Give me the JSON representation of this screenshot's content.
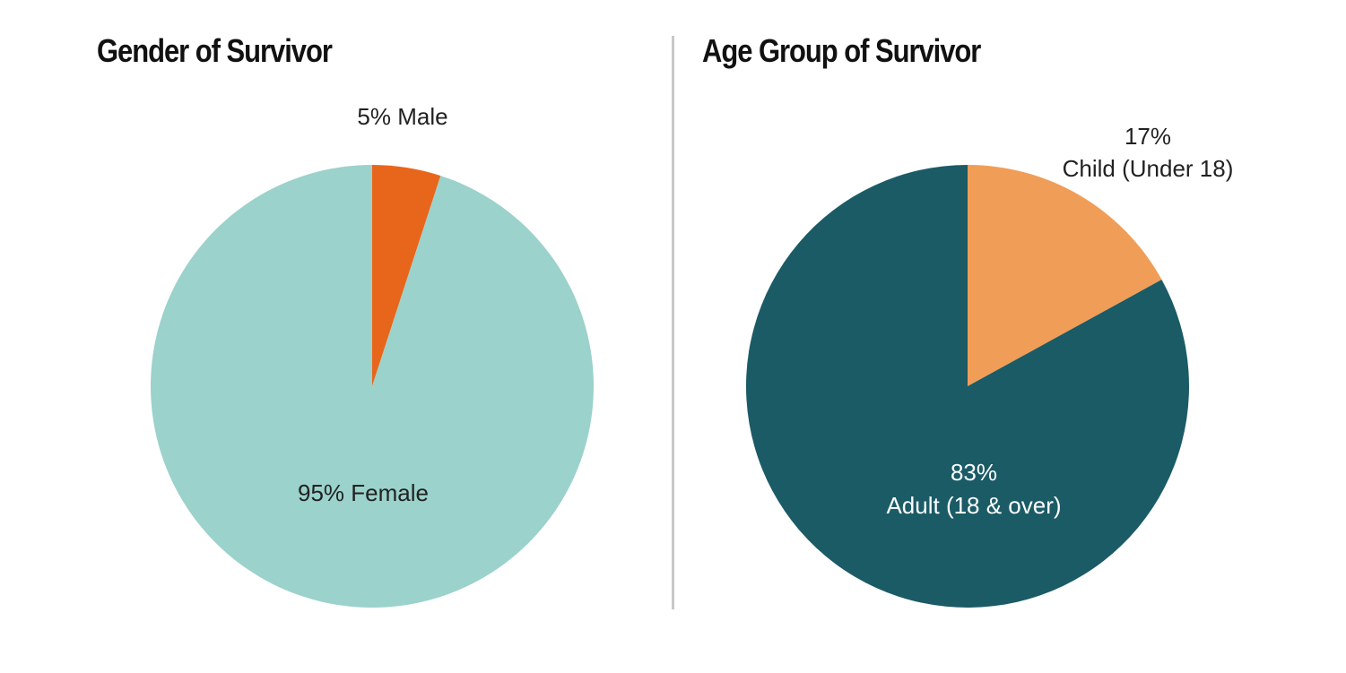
{
  "chart_data": [
    {
      "type": "pie",
      "title": "Gender of Survivor",
      "categories": [
        "Male",
        "Female"
      ],
      "values": [
        5,
        95
      ],
      "labels": [
        {
          "pct": "5% Male",
          "name": ""
        },
        {
          "pct": "95% Female",
          "name": ""
        }
      ],
      "colors": [
        "#E8661C",
        "#9BD2CB"
      ],
      "start": "12 o'clock, clockwise"
    },
    {
      "type": "pie",
      "title": "Age Group of Survivor",
      "categories": [
        "Child (Under 18)",
        "Adult (18 & over)"
      ],
      "values": [
        17,
        83
      ],
      "labels": [
        {
          "pct": "17%",
          "name": "Child (Under 18)"
        },
        {
          "pct": "83%",
          "name": "Adult (18 & over)"
        }
      ],
      "colors": [
        "#F09D57",
        "#1A5B66"
      ],
      "start": "12 o'clock, clockwise"
    }
  ]
}
